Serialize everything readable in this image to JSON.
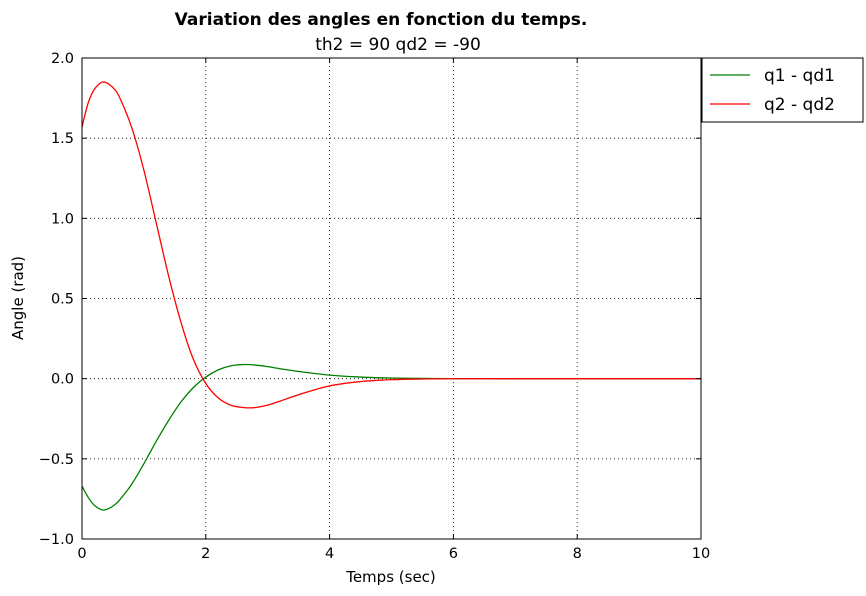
{
  "chart_data": {
    "type": "line",
    "title": "Variation des angles en fonction du temps.",
    "subtitle": "th2 = 90 qd2 = -90",
    "xlabel": "Temps (sec)",
    "ylabel": "Angle (rad)",
    "xlim": [
      0,
      10
    ],
    "ylim": [
      -1.0,
      2.0
    ],
    "xticks": [
      0,
      2,
      4,
      6,
      8,
      10
    ],
    "xtick_labels": [
      "0",
      "2",
      "4",
      "6",
      "8",
      "10"
    ],
    "yticks": [
      -1.0,
      -0.5,
      0.0,
      0.5,
      1.0,
      1.5,
      2.0
    ],
    "ytick_labels": [
      "−1.0",
      "−0.5",
      "0.0",
      "0.5",
      "1.0",
      "1.5",
      "2.0"
    ],
    "grid": true,
    "legend_position": "outside-top-right",
    "series": [
      {
        "name": "q1 - qd1",
        "color": "#008000",
        "x": [
          0,
          0.1,
          0.2,
          0.3,
          0.35,
          0.4,
          0.5,
          0.6,
          0.8,
          1.0,
          1.2,
          1.4,
          1.6,
          1.8,
          2.0,
          2.2,
          2.4,
          2.6,
          2.8,
          3.0,
          3.2,
          3.5,
          4.0,
          4.5,
          5.0,
          5.5,
          6.0,
          7.0,
          8.0,
          9.0,
          10.0
        ],
        "y": [
          -0.67,
          -0.74,
          -0.79,
          -0.815,
          -0.82,
          -0.815,
          -0.795,
          -0.76,
          -0.66,
          -0.53,
          -0.39,
          -0.26,
          -0.145,
          -0.055,
          0.01,
          0.055,
          0.08,
          0.088,
          0.085,
          0.075,
          0.062,
          0.045,
          0.022,
          0.01,
          0.004,
          0.0015,
          0.0005,
          0.0,
          0.0,
          0.0,
          0.0
        ]
      },
      {
        "name": "q2 - qd2",
        "color": "#ff0000",
        "x": [
          0,
          0.1,
          0.2,
          0.3,
          0.35,
          0.4,
          0.5,
          0.6,
          0.8,
          1.0,
          1.2,
          1.4,
          1.6,
          1.8,
          2.0,
          2.2,
          2.4,
          2.6,
          2.7,
          2.8,
          3.0,
          3.2,
          3.5,
          4.0,
          4.5,
          5.0,
          5.5,
          6.0,
          7.0,
          8.0,
          9.0,
          10.0
        ],
        "y": [
          1.57,
          1.72,
          1.805,
          1.845,
          1.85,
          1.845,
          1.815,
          1.76,
          1.57,
          1.3,
          0.97,
          0.64,
          0.35,
          0.12,
          -0.03,
          -0.12,
          -0.165,
          -0.18,
          -0.182,
          -0.18,
          -0.165,
          -0.14,
          -0.1,
          -0.045,
          -0.018,
          -0.006,
          -0.002,
          -0.0005,
          0.0,
          0.0,
          0.0,
          0.0
        ]
      }
    ]
  }
}
